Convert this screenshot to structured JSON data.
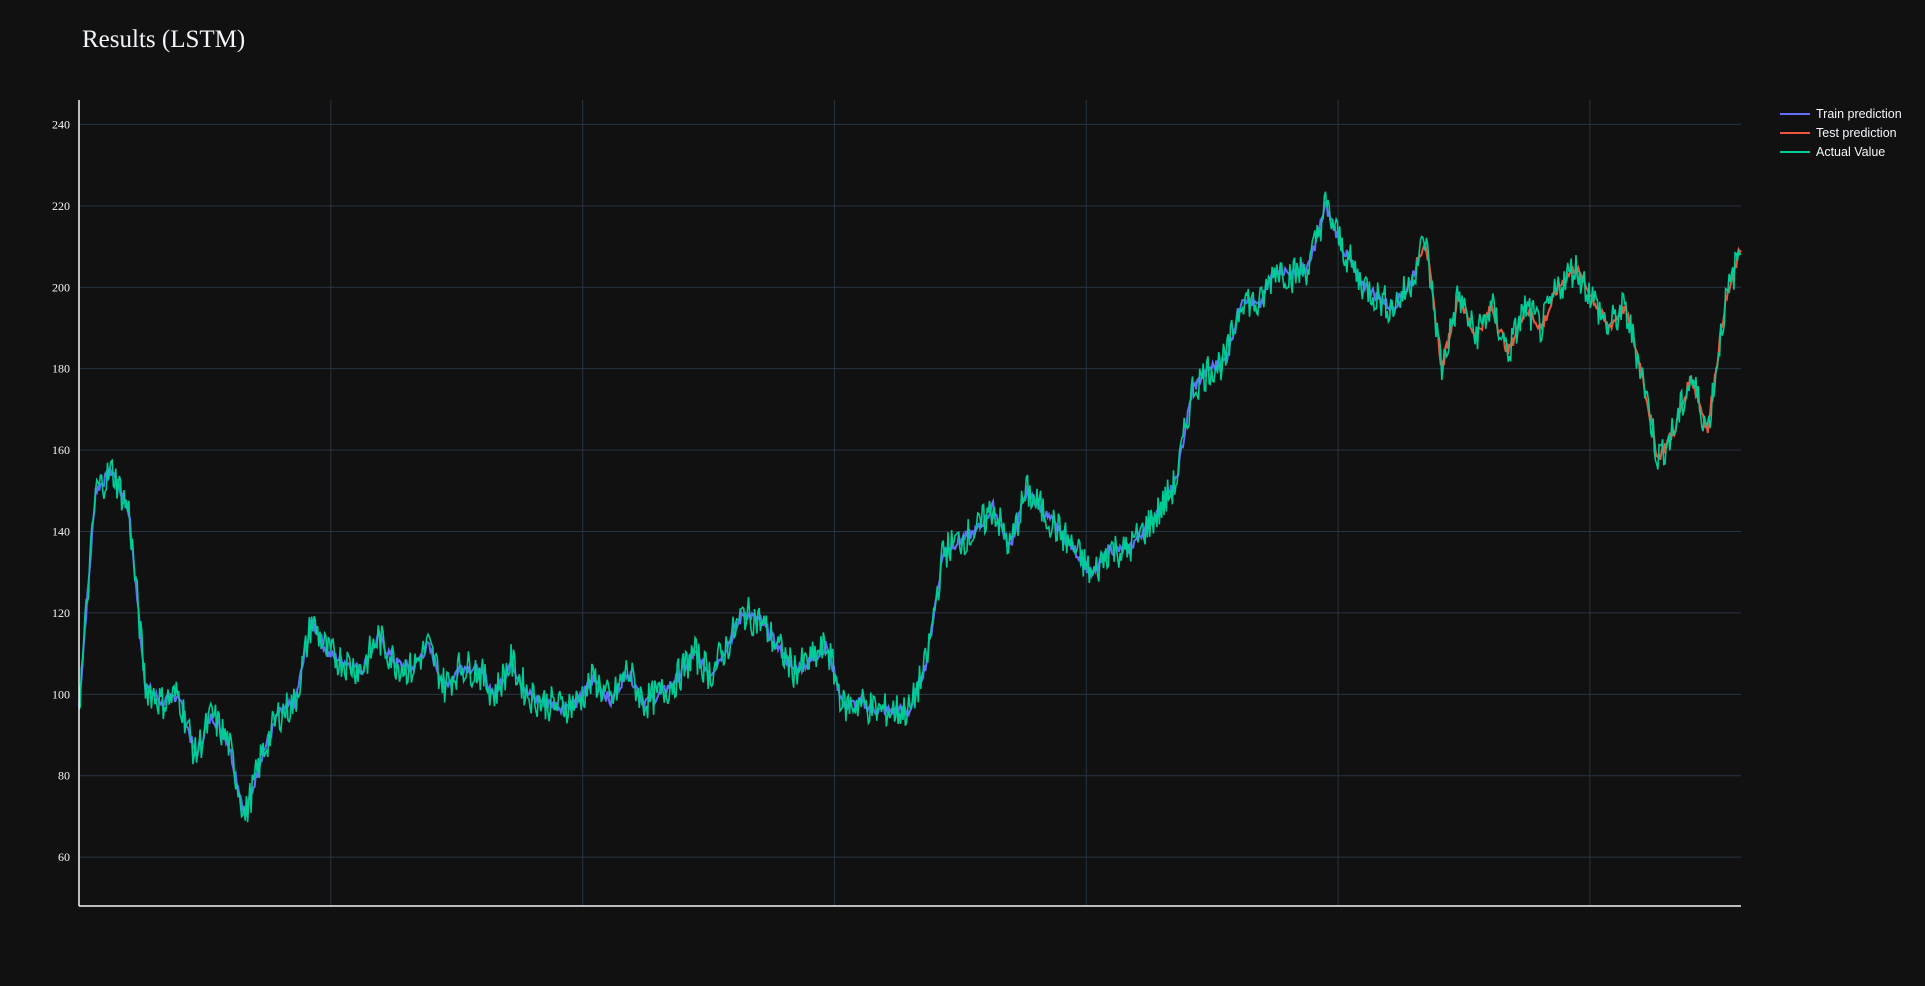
{
  "chart_data": {
    "type": "line",
    "title": "Results (LSTM)",
    "xlabel": "",
    "ylabel": "",
    "ylim": [
      48,
      246
    ],
    "y_ticks": [
      60,
      80,
      100,
      120,
      140,
      160,
      180,
      200,
      220,
      240
    ],
    "x_tick_labels": [],
    "grid": true,
    "legend_position": "top-right",
    "series": [
      {
        "name": "Train prediction",
        "color": "#636efa",
        "range": [
          0,
          0.805
        ]
      },
      {
        "name": "Test prediction",
        "color": "#ef553b",
        "range": [
          0.805,
          1.0
        ]
      },
      {
        "name": "Actual Value",
        "color": "#00cc96",
        "range": [
          0,
          1.0
        ]
      }
    ],
    "x": [
      0,
      0.01,
      0.02,
      0.03,
      0.04,
      0.05,
      0.06,
      0.07,
      0.08,
      0.09,
      0.1,
      0.11,
      0.12,
      0.13,
      0.14,
      0.15,
      0.16,
      0.17,
      0.18,
      0.19,
      0.2,
      0.21,
      0.22,
      0.23,
      0.24,
      0.25,
      0.26,
      0.27,
      0.28,
      0.29,
      0.3,
      0.31,
      0.32,
      0.33,
      0.34,
      0.35,
      0.36,
      0.37,
      0.38,
      0.39,
      0.4,
      0.41,
      0.42,
      0.43,
      0.44,
      0.45,
      0.46,
      0.47,
      0.48,
      0.49,
      0.5,
      0.51,
      0.52,
      0.53,
      0.54,
      0.55,
      0.56,
      0.57,
      0.58,
      0.59,
      0.6,
      0.61,
      0.62,
      0.63,
      0.64,
      0.65,
      0.66,
      0.67,
      0.68,
      0.69,
      0.7,
      0.71,
      0.72,
      0.73,
      0.74,
      0.75,
      0.76,
      0.77,
      0.78,
      0.79,
      0.8,
      0.81,
      0.82,
      0.83,
      0.84,
      0.85,
      0.86,
      0.87,
      0.88,
      0.89,
      0.9,
      0.91,
      0.92,
      0.93,
      0.94,
      0.95,
      0.96,
      0.97,
      0.98,
      0.99,
      1.0
    ],
    "values": [
      97,
      150,
      155,
      145,
      102,
      98,
      100,
      85,
      95,
      88,
      70,
      85,
      95,
      98,
      118,
      110,
      108,
      106,
      114,
      108,
      106,
      112,
      102,
      107,
      106,
      100,
      108,
      100,
      98,
      97,
      98,
      104,
      98,
      106,
      98,
      100,
      104,
      110,
      105,
      112,
      120,
      118,
      112,
      106,
      108,
      112,
      97,
      98,
      96,
      96,
      96,
      108,
      135,
      138,
      140,
      146,
      136,
      150,
      145,
      140,
      135,
      129,
      136,
      135,
      140,
      145,
      152,
      175,
      180,
      182,
      198,
      195,
      205,
      203,
      205,
      220,
      210,
      202,
      198,
      195,
      200,
      212,
      180,
      198,
      188,
      195,
      184,
      195,
      190,
      200,
      205,
      198,
      190,
      195,
      180,
      158,
      165,
      178,
      165,
      195,
      210
    ]
  }
}
